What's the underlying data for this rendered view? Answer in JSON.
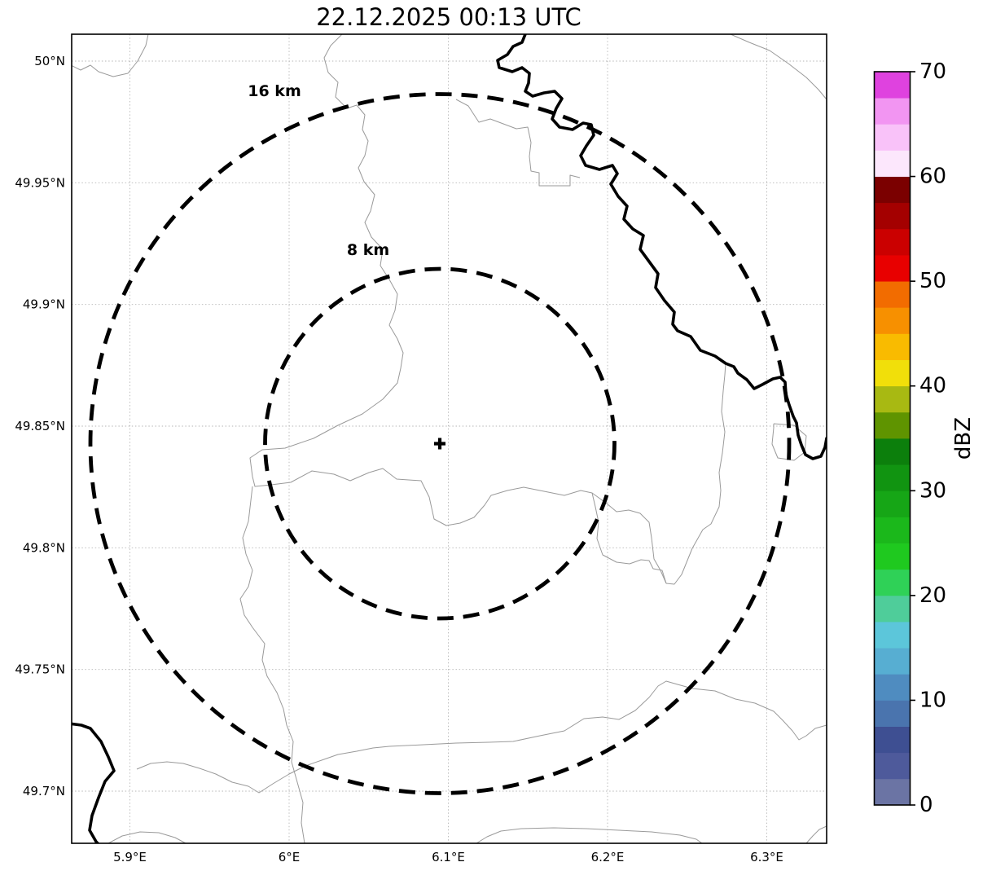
{
  "figure": {
    "title": "22.12.2025 00:13 UTC"
  },
  "map": {
    "x_axis_ticks": [
      "5.9°E",
      "6°E",
      "6.1°E",
      "6.2°E",
      "6.3°E"
    ],
    "y_axis_ticks": [
      "50°N",
      "49.95°N",
      "49.9°N",
      "49.85°N",
      "49.8°N",
      "49.75°N",
      "49.7°N"
    ],
    "range_rings": [
      {
        "label": "16 km",
        "radius_km": 16
      },
      {
        "label": "8 km",
        "radius_km": 8
      }
    ],
    "center_marker_symbol": "+"
  },
  "colorbar": {
    "axis_label": "dBZ",
    "tick_labels": [
      "0",
      "10",
      "20",
      "30",
      "40",
      "50",
      "60",
      "70"
    ],
    "value_min_dbz": 0,
    "value_max_dbz": 70,
    "segment_step_dbz": 2.5,
    "segment_colors_bottom_to_top": [
      "#6b74a4",
      "#4e5a9b",
      "#3e4f92",
      "#4a74ae",
      "#4f8cc0",
      "#57aed2",
      "#5cc6da",
      "#4fcd9a",
      "#2fd157",
      "#1fc91f",
      "#1bb81b",
      "#16a616",
      "#119411",
      "#0c7f0c",
      "#5f9400",
      "#a8b912",
      "#f1df0a",
      "#f9bb00",
      "#f79000",
      "#f26c00",
      "#e80000",
      "#cb0000",
      "#a40000",
      "#7b0000",
      "#fce7fc",
      "#f9c2f9",
      "#f295f2",
      "#df42df"
    ]
  },
  "styles": {
    "ring_color": "#000000",
    "thick_border_color": "#000000",
    "thin_border_color": "#9a9a9a",
    "grid_color": "#b5b5b5"
  }
}
